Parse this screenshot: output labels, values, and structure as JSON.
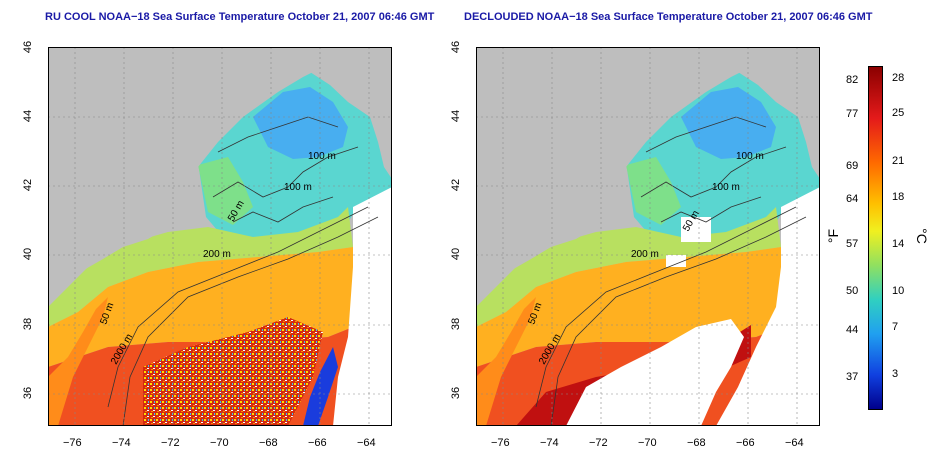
{
  "left_panel": {
    "title": "RU COOL NOAA−18 Sea Surface Temperature October 21, 2007 06:46 GMT",
    "contour_labels": [
      "100 m",
      "100 m",
      "50 m",
      "200 m",
      "50 m",
      "2000 m"
    ]
  },
  "right_panel": {
    "title": "DECLOUDED NOAA−18 Sea Surface Temperature October 21, 2007 06:46 GMT",
    "contour_labels": [
      "100 m",
      "100 m",
      "50 m",
      "200 m",
      "50 m",
      "2000 m"
    ]
  },
  "axes": {
    "lon_ticks": [
      "−76",
      "−74",
      "−72",
      "−70",
      "−68",
      "−66",
      "−64"
    ],
    "lat_ticks": [
      "36",
      "38",
      "40",
      "42",
      "44",
      "46"
    ]
  },
  "colorbar": {
    "f_label": "°F",
    "c_label": "°C",
    "f_ticks": [
      "82",
      "77",
      "69",
      "64",
      "57",
      "50",
      "44",
      "37"
    ],
    "c_ticks": [
      "28",
      "25",
      "21",
      "18",
      "14",
      "10",
      "7",
      "3"
    ]
  },
  "colors": {
    "land": "#bebebe",
    "title": "#1a1aa6"
  }
}
